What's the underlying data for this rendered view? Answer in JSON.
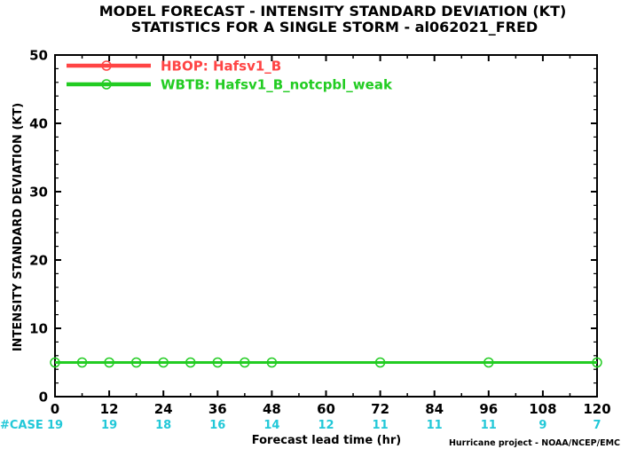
{
  "title_line1": "MODEL FORECAST - INTENSITY STANDARD DEVIATION (KT)",
  "title_line2": "STATISTICS FOR A SINGLE STORM - al062021_FRED",
  "credit": "Hurricane project - NOAA/NCEP/EMC",
  "case_label": "#CASE",
  "chart_data": {
    "type": "line",
    "xlabel": "Forecast lead time (hr)",
    "ylabel": "INTENSITY STANDARD DEVIATION (KT)",
    "xlim": [
      0,
      120
    ],
    "ylim": [
      0,
      50
    ],
    "xticks": [
      0,
      12,
      24,
      36,
      48,
      60,
      72,
      84,
      96,
      108,
      120
    ],
    "yticks": [
      0,
      10,
      20,
      30,
      40,
      50
    ],
    "grid": false,
    "legend_position": "top-left",
    "series": [
      {
        "name": "HBOP: Hafsv1_B",
        "color": "#ff4444",
        "x": [],
        "y": []
      },
      {
        "name": "WBTB: Hafsv1_B_notcpbl_weak",
        "color": "#22cc22",
        "x": [
          0,
          6,
          12,
          18,
          24,
          30,
          36,
          42,
          48,
          72,
          96,
          120
        ],
        "y": [
          5,
          5,
          5,
          5,
          5,
          5,
          5,
          5,
          5,
          5,
          5,
          5
        ]
      }
    ],
    "cases": [
      {
        "x": 0,
        "n": "19"
      },
      {
        "x": 12,
        "n": "19"
      },
      {
        "x": 24,
        "n": "18"
      },
      {
        "x": 36,
        "n": "16"
      },
      {
        "x": 48,
        "n": "14"
      },
      {
        "x": 60,
        "n": "12"
      },
      {
        "x": 72,
        "n": "11"
      },
      {
        "x": 84,
        "n": "11"
      },
      {
        "x": 96,
        "n": "11"
      },
      {
        "x": 108,
        "n": "9"
      },
      {
        "x": 120,
        "n": "7"
      }
    ]
  }
}
